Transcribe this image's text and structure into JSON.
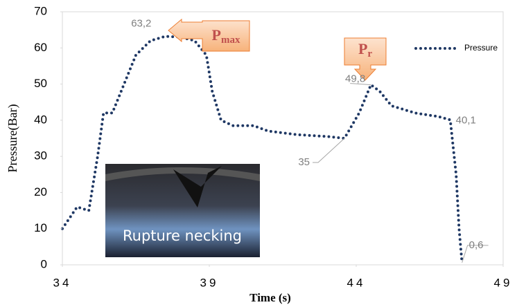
{
  "chart_data": {
    "type": "line",
    "x_label": "Time (s)",
    "y_label": "Pressure(Bar)",
    "xlim": [
      34,
      49
    ],
    "xticks": [
      34,
      39,
      44,
      49
    ],
    "ylim": [
      0,
      70
    ],
    "yticks": [
      0,
      10,
      20,
      30,
      40,
      50,
      60,
      70
    ],
    "legend": "top-right",
    "series": [
      {
        "name": "Pressure",
        "color": "#1f3864",
        "x": [
          34,
          34.5,
          34.9,
          35.2,
          35.4,
          35.7,
          36,
          36.5,
          37,
          37.5,
          38,
          38.5,
          38.9,
          39.1,
          39.4,
          39.8,
          40.5,
          41,
          42,
          43,
          43.6,
          44.1,
          44.5,
          44.8,
          45.2,
          46,
          46.8,
          47.2,
          47.4,
          47.5,
          47.6
        ],
        "values": [
          10,
          16,
          15,
          30,
          42,
          42,
          48,
          58,
          62,
          63.2,
          63,
          62,
          58,
          48,
          40,
          38.5,
          38.5,
          37,
          36,
          35.5,
          35,
          42,
          49.8,
          48,
          44,
          42,
          41,
          40.1,
          25,
          10,
          0.6
        ]
      }
    ],
    "annotations": [
      {
        "x": 37.5,
        "y": 63.2,
        "label": "63,2"
      },
      {
        "x": 44.5,
        "y": 49.8,
        "label": "49,8"
      },
      {
        "x": 43.6,
        "y": 35,
        "label": "35"
      },
      {
        "x": 47.2,
        "y": 40.1,
        "label": "40,1"
      },
      {
        "x": 47.6,
        "y": 0.6,
        "label": "0,6"
      }
    ],
    "callouts": [
      {
        "label": "P",
        "subscript": "max"
      },
      {
        "label": "P",
        "subscript": "r"
      }
    ],
    "inset_label": "Rupture necking"
  }
}
